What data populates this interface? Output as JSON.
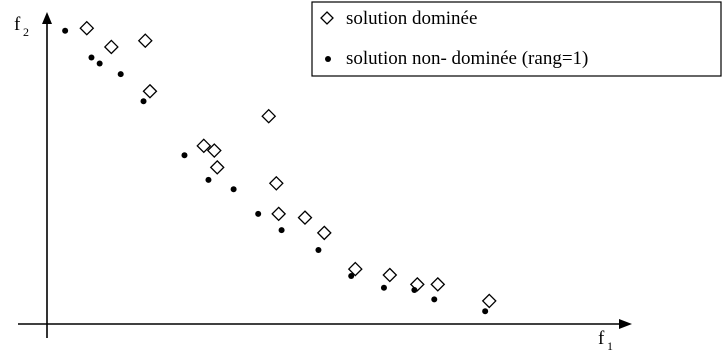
{
  "chart_data": {
    "type": "scatter",
    "axes": {
      "x_label_main": "f",
      "x_label_sub": "1",
      "y_label_main": "f",
      "y_label_sub": "2",
      "ticks": "none",
      "grid": false
    },
    "xlim": [
      0,
      100
    ],
    "ylim": [
      0,
      100
    ],
    "legend": {
      "placement": "top-right",
      "entries": [
        {
          "series": "dominated",
          "label": "solution dominée"
        },
        {
          "series": "nondominated",
          "label": "solution non- dominée (rang=1)"
        }
      ]
    },
    "series": [
      {
        "key": "dominated",
        "name": "solution dominée",
        "marker": "diamond",
        "color": "#000000",
        "points": [
          [
            6.8,
            94.8
          ],
          [
            11.0,
            88.8
          ],
          [
            16.8,
            90.8
          ],
          [
            17.6,
            74.6
          ],
          [
            26.8,
            57.1
          ],
          [
            28.6,
            55.6
          ],
          [
            29.1,
            50.2
          ],
          [
            37.9,
            66.6
          ],
          [
            39.2,
            45.1
          ],
          [
            39.6,
            35.3
          ],
          [
            44.1,
            34.1
          ],
          [
            47.4,
            29.2
          ],
          [
            52.7,
            17.6
          ],
          [
            58.6,
            15.7
          ],
          [
            63.3,
            12.7
          ],
          [
            66.8,
            12.7
          ],
          [
            75.6,
            7.4
          ]
        ]
      },
      {
        "key": "nondominated",
        "name": "solution non- dominée (rang=1)",
        "marker": "dot",
        "color": "#000000",
        "points": [
          [
            3.1,
            94.0
          ],
          [
            7.6,
            85.4
          ],
          [
            9.0,
            83.5
          ],
          [
            12.6,
            80.1
          ],
          [
            16.5,
            71.4
          ],
          [
            23.5,
            54.1
          ],
          [
            27.6,
            46.2
          ],
          [
            31.9,
            43.2
          ],
          [
            36.1,
            35.3
          ],
          [
            40.1,
            30.1
          ],
          [
            46.4,
            23.7
          ],
          [
            52.0,
            15.4
          ],
          [
            57.6,
            11.6
          ],
          [
            62.8,
            10.9
          ],
          [
            66.2,
            7.9
          ],
          [
            74.9,
            4.1
          ]
        ]
      }
    ]
  }
}
